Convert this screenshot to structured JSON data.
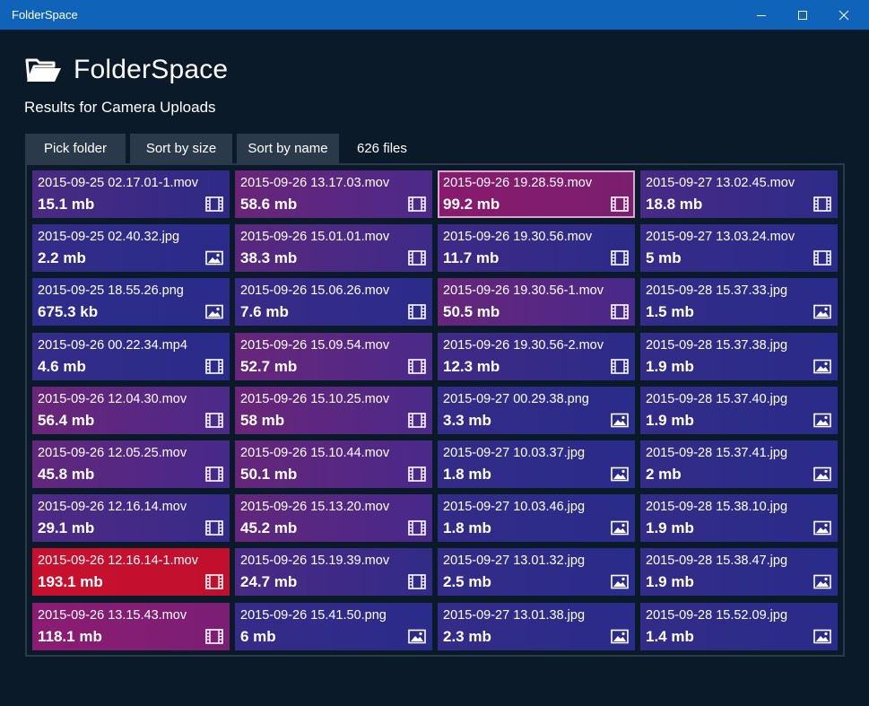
{
  "window": {
    "title": "FolderSpace"
  },
  "header": {
    "title": "FolderSpace",
    "subtitle": "Results for Camera Uploads"
  },
  "toolbar": {
    "pick_label": "Pick folder",
    "sort_size_label": "Sort by size",
    "sort_name_label": "Sort by name",
    "file_count": "626 files"
  },
  "colors": {
    "titlebar": "#0f64b9",
    "background": "#0b1a28",
    "button": "#2b3a4a"
  },
  "files": [
    {
      "name": "2015-09-25 02.17.01-1.mov",
      "size": "15.1 mb",
      "type": "video",
      "c1": "#4a2a82",
      "c2": "#2e2a86"
    },
    {
      "name": "2015-09-26 13.17.03.mov",
      "size": "58.6 mb",
      "type": "video",
      "c1": "#6a2578",
      "c2": "#4b2a8a"
    },
    {
      "name": "2015-09-26 19.28.59.mov",
      "size": "99.2 mb",
      "type": "video",
      "c1": "#8a1a6e",
      "c2": "#7a1f6e",
      "selected": true
    },
    {
      "name": "2015-09-27 13.02.45.mov",
      "size": "18.8 mb",
      "type": "video",
      "c1": "#472a86",
      "c2": "#2e2b88"
    },
    {
      "name": "2015-09-25 02.40.32.jpg",
      "size": "2.2 mb",
      "type": "image",
      "c1": "#342c88",
      "c2": "#2a2b8a"
    },
    {
      "name": "2015-09-26 15.01.01.mov",
      "size": "38.3 mb",
      "type": "video",
      "c1": "#5a287e",
      "c2": "#3d2b88"
    },
    {
      "name": "2015-09-26 19.30.56.mov",
      "size": "11.7 mb",
      "type": "video",
      "c1": "#3e2a86",
      "c2": "#2c2b88"
    },
    {
      "name": "2015-09-27 13.03.24.mov",
      "size": "5 mb",
      "type": "video",
      "c1": "#372b88",
      "c2": "#2a2b8a"
    },
    {
      "name": "2015-09-25 18.55.26.png",
      "size": "675.3 kb",
      "type": "image",
      "c1": "#2e2c8a",
      "c2": "#2a2b8a"
    },
    {
      "name": "2015-09-26 15.06.26.mov",
      "size": "7.6 mb",
      "type": "video",
      "c1": "#3a2b88",
      "c2": "#2b2b8a"
    },
    {
      "name": "2015-09-26 19.30.56-1.mov",
      "size": "50.5 mb",
      "type": "video",
      "c1": "#66267a",
      "c2": "#49298a"
    },
    {
      "name": "2015-09-28 15.37.33.jpg",
      "size": "1.5 mb",
      "type": "image",
      "c1": "#322c88",
      "c2": "#2a2b8a"
    },
    {
      "name": "2015-09-26 00.22.34.mp4",
      "size": "4.6 mb",
      "type": "video",
      "c1": "#342c88",
      "c2": "#2a2b8a"
    },
    {
      "name": "2015-09-26 15.09.54.mov",
      "size": "52.7 mb",
      "type": "video",
      "c1": "#68267a",
      "c2": "#4a2a8a"
    },
    {
      "name": "2015-09-26 19.30.56-2.mov",
      "size": "12.3 mb",
      "type": "video",
      "c1": "#402a86",
      "c2": "#2c2b88"
    },
    {
      "name": "2015-09-28 15.37.38.jpg",
      "size": "1.9 mb",
      "type": "image",
      "c1": "#332c88",
      "c2": "#2a2b8a"
    },
    {
      "name": "2015-09-26 12.04.30.mov",
      "size": "56.4 mb",
      "type": "video",
      "c1": "#6a2578",
      "c2": "#4b2a8a"
    },
    {
      "name": "2015-09-26 15.10.25.mov",
      "size": "58 mb",
      "type": "video",
      "c1": "#6a2578",
      "c2": "#4b2a8a"
    },
    {
      "name": "2015-09-27 00.29.38.png",
      "size": "3.3 mb",
      "type": "image",
      "c1": "#352c88",
      "c2": "#2a2b8a"
    },
    {
      "name": "2015-09-28 15.37.40.jpg",
      "size": "1.9 mb",
      "type": "image",
      "c1": "#332c88",
      "c2": "#2a2b8a"
    },
    {
      "name": "2015-09-26 12.05.25.mov",
      "size": "45.8 mb",
      "type": "video",
      "c1": "#62277c",
      "c2": "#46298a"
    },
    {
      "name": "2015-09-26 15.10.44.mov",
      "size": "50.1 mb",
      "type": "video",
      "c1": "#66267a",
      "c2": "#49298a"
    },
    {
      "name": "2015-09-27 10.03.37.jpg",
      "size": "1.8 mb",
      "type": "image",
      "c1": "#332c88",
      "c2": "#2a2b8a"
    },
    {
      "name": "2015-09-28 15.37.41.jpg",
      "size": "2 mb",
      "type": "image",
      "c1": "#332c88",
      "c2": "#2a2b8a"
    },
    {
      "name": "2015-09-26 12.16.14.mov",
      "size": "29.1 mb",
      "type": "video",
      "c1": "#4f2a84",
      "c2": "#362b88"
    },
    {
      "name": "2015-09-26 15.13.20.mov",
      "size": "45.2 mb",
      "type": "video",
      "c1": "#62277c",
      "c2": "#46298a"
    },
    {
      "name": "2015-09-27 10.03.46.jpg",
      "size": "1.8 mb",
      "type": "image",
      "c1": "#332c88",
      "c2": "#2a2b8a"
    },
    {
      "name": "2015-09-28 15.38.10.jpg",
      "size": "1.9 mb",
      "type": "image",
      "c1": "#332c88",
      "c2": "#2a2b8a"
    },
    {
      "name": "2015-09-26 12.16.14-1.mov",
      "size": "193.1 mb",
      "type": "video",
      "c1": "#c8102e",
      "c2": "#c0102e"
    },
    {
      "name": "2015-09-26 15.19.39.mov",
      "size": "24.7 mb",
      "type": "video",
      "c1": "#4a2a84",
      "c2": "#322b88"
    },
    {
      "name": "2015-09-27 13.01.32.jpg",
      "size": "2.5 mb",
      "type": "image",
      "c1": "#342c88",
      "c2": "#2a2b8a"
    },
    {
      "name": "2015-09-28 15.38.47.jpg",
      "size": "1.9 mb",
      "type": "image",
      "c1": "#332c88",
      "c2": "#2a2b8a"
    },
    {
      "name": "2015-09-26 13.15.43.mov",
      "size": "118.1 mb",
      "type": "video",
      "c1": "#8c1c72",
      "c2": "#7a1f74"
    },
    {
      "name": "2015-09-26 15.41.50.png",
      "size": "6 mb",
      "type": "image",
      "c1": "#372b88",
      "c2": "#2a2b8a"
    },
    {
      "name": "2015-09-27 13.01.38.jpg",
      "size": "2.3 mb",
      "type": "image",
      "c1": "#342c88",
      "c2": "#2a2b8a"
    },
    {
      "name": "2015-09-28 15.52.09.jpg",
      "size": "1.4 mb",
      "type": "image",
      "c1": "#322c88",
      "c2": "#2a2b8a"
    }
  ]
}
